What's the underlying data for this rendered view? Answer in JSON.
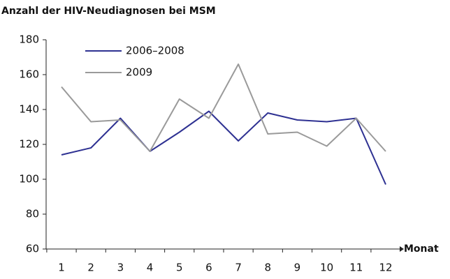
{
  "chart_data": {
    "type": "line",
    "title": "Anzahl der HIV-Neudiagnosen bei MSM",
    "x_label": "Monat",
    "categories": [
      "1",
      "2",
      "3",
      "4",
      "5",
      "6",
      "7",
      "8",
      "9",
      "10",
      "11",
      "12"
    ],
    "series": [
      {
        "name": "2006–2008",
        "color": "#2e3192",
        "values": [
          114,
          118,
          135,
          116,
          127,
          139,
          122,
          138,
          134,
          133,
          135,
          97
        ]
      },
      {
        "name": "2009",
        "color": "#9a9a9a",
        "values": [
          153,
          133,
          134,
          116,
          146,
          135,
          166,
          126,
          127,
          119,
          135,
          116
        ]
      }
    ],
    "ylim": [
      60,
      180
    ],
    "yticks": [
      60,
      80,
      100,
      120,
      140,
      160,
      180
    ],
    "grid": false,
    "legend": "upper left"
  }
}
